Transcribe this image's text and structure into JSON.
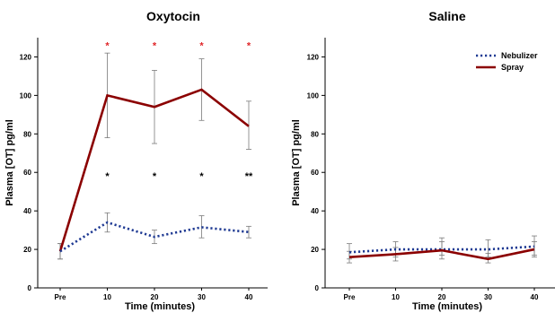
{
  "chart_data": [
    {
      "type": "line",
      "title": "Oxytocin",
      "xlabel": "Time (minutes)",
      "ylabel": "Plasma [OT] pg/ml",
      "categories": [
        "Pre",
        "10",
        "20",
        "30",
        "40"
      ],
      "yticks": [
        "0",
        "20",
        "40",
        "60",
        "80",
        "100",
        "120"
      ],
      "ylim": [
        0,
        130
      ],
      "series": [
        {
          "name": "Spray",
          "style": "solid",
          "color": "#8b0000",
          "values": [
            19,
            100,
            94,
            103,
            84
          ],
          "err_low": [
            15,
            78,
            75,
            87,
            72
          ],
          "err_high": [
            23,
            122,
            113,
            119,
            97
          ]
        },
        {
          "name": "Nebulizer",
          "style": "dotted",
          "color": "#1f3a93",
          "values": [
            19,
            34,
            26.5,
            31.5,
            29
          ],
          "err_low": [
            15,
            29,
            23,
            26,
            26
          ],
          "err_high": [
            23,
            39,
            30,
            37.5,
            32
          ]
        }
      ],
      "annotations": [
        {
          "label": "*",
          "x": "10",
          "y": 128,
          "color": "#e0282b"
        },
        {
          "label": "*",
          "x": "20",
          "y": 128,
          "color": "#e0282b"
        },
        {
          "label": "*",
          "x": "30",
          "y": 128,
          "color": "#e0282b"
        },
        {
          "label": "*",
          "x": "40",
          "y": 128,
          "color": "#e0282b"
        },
        {
          "label": "*",
          "x": "10",
          "y": 60,
          "color": "#000000"
        },
        {
          "label": "*",
          "x": "20",
          "y": 60,
          "color": "#000000"
        },
        {
          "label": "*",
          "x": "30",
          "y": 60,
          "color": "#000000"
        },
        {
          "label": "**",
          "x": "40",
          "y": 60,
          "color": "#000000"
        }
      ]
    },
    {
      "type": "line",
      "title": "Saline",
      "xlabel": "Time (minutes)",
      "ylabel": "Plasma [OT] pg/ml",
      "categories": [
        "Pre",
        "10",
        "20",
        "30",
        "40"
      ],
      "yticks": [
        "0",
        "20",
        "40",
        "60",
        "80",
        "100",
        "120"
      ],
      "ylim": [
        0,
        130
      ],
      "legend": {
        "placement": "top-right",
        "entries": [
          "Nebulizer",
          "Spray"
        ]
      },
      "series": [
        {
          "name": "Nebulizer",
          "style": "dotted",
          "color": "#1f3a93",
          "values": [
            18.5,
            20,
            20,
            20,
            21.5
          ],
          "err_low": [
            15,
            16,
            17,
            16,
            17
          ],
          "err_high": [
            23,
            24,
            26,
            25,
            27
          ]
        },
        {
          "name": "Spray",
          "style": "solid",
          "color": "#8b0000",
          "values": [
            16,
            17.5,
            19.5,
            15,
            20
          ],
          "err_low": [
            13,
            14,
            15,
            13,
            16
          ],
          "err_high": [
            19,
            21,
            24,
            18,
            24
          ]
        }
      ],
      "annotations": []
    }
  ]
}
